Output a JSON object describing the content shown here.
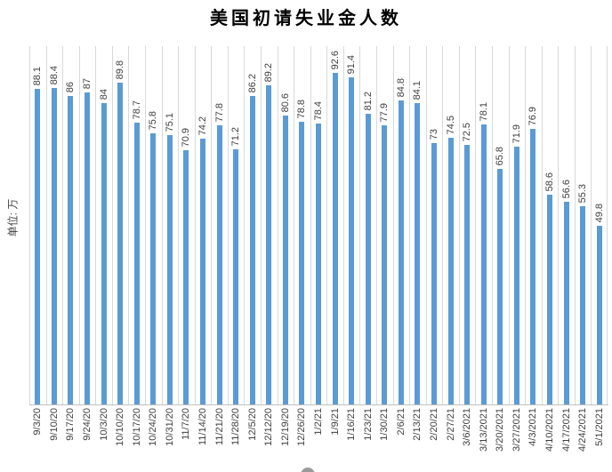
{
  "chart_data": {
    "type": "bar",
    "title": "美国初请失业金人数",
    "unit_label": "单位: 万",
    "categories": [
      "9/3/20",
      "9/10/20",
      "9/17/20",
      "9/24/20",
      "10/3/20",
      "10/10/20",
      "10/17/20",
      "10/24/20",
      "10/31/20",
      "11/7/20",
      "11/14/20",
      "11/21/20",
      "11/28/20",
      "12/5/20",
      "12/12/20",
      "12/19/20",
      "12/26/20",
      "1/2/21",
      "1/9/21",
      "1/16/21",
      "1/23/21",
      "1/30/21",
      "2/6/21",
      "2/13/21",
      "2/20/21",
      "2/27/21",
      "3/6/2021",
      "3/13/2021",
      "3/20/2021",
      "3/27/2021",
      "4/3/2021",
      "4/10/2021",
      "4/17/2021",
      "4/24/2021",
      "5/1/2021"
    ],
    "values": [
      88.1,
      88.4,
      86,
      87,
      84,
      89.8,
      78.7,
      75.8,
      75.1,
      70.9,
      74.2,
      77.8,
      71.2,
      86.2,
      89.2,
      80.6,
      78.8,
      78.4,
      92.6,
      91.4,
      81.2,
      77.9,
      84.8,
      84.1,
      73,
      74.5,
      72.5,
      78.1,
      65.8,
      71.9,
      76.9,
      58.6,
      56.6,
      55.3,
      49.8
    ],
    "xlabel": "",
    "ylabel": "单位: 万",
    "ylim": [
      0,
      100
    ],
    "legend": "none",
    "grid": "vertical-category-separators-only",
    "value_labels": "rotated-90ccw-above-bars",
    "category_labels": "rotated-90ccw-below-axis",
    "bar_color": "#5b9bd5",
    "gridline_color": "#d9d9d9",
    "axis_color": "#bfbfbf",
    "label_color": "#3f3f3f",
    "title_color": "#000000"
  }
}
